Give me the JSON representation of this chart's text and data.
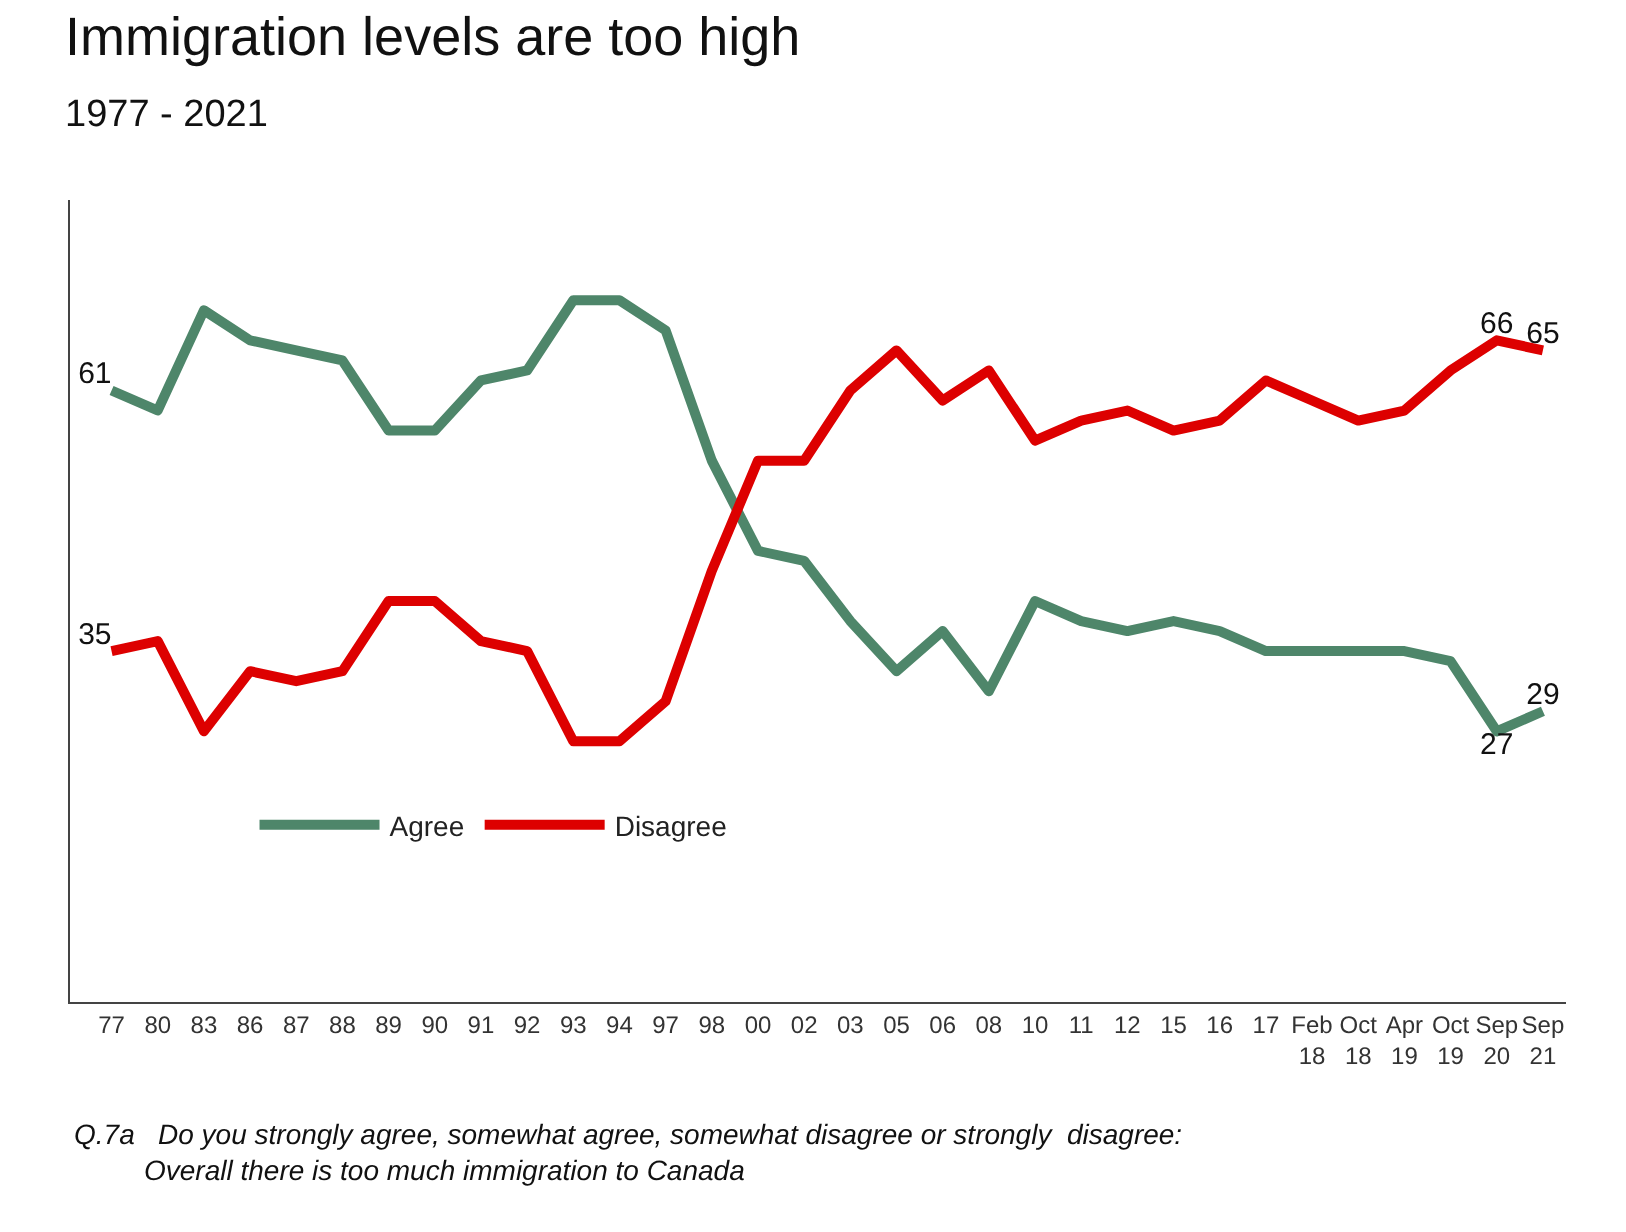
{
  "chart_data": {
    "type": "line",
    "title": "Immigration levels are too high",
    "subtitle": "1977 - 2021",
    "categories": [
      "77",
      "80",
      "83",
      "86",
      "87",
      "88",
      "89",
      "90",
      "91",
      "92",
      "93",
      "94",
      "97",
      "98",
      "00",
      "02",
      "03",
      "05",
      "06",
      "08",
      "10",
      "11",
      "12",
      "15",
      "16",
      "17",
      "Feb 18",
      "Oct 18",
      "Apr 19",
      "Oct 19",
      "Sep 20",
      "Sep 21"
    ],
    "series": [
      {
        "name": "Agree",
        "color": "#4e866a",
        "values": [
          61,
          59,
          69,
          66,
          65,
          64,
          57,
          57,
          62,
          63,
          70,
          70,
          67,
          54,
          45,
          44,
          38,
          33,
          37,
          31,
          40,
          38,
          37,
          38,
          37,
          35,
          35,
          35,
          35,
          34,
          27,
          29
        ],
        "value_labels": [
          "61",
          null,
          null,
          null,
          null,
          null,
          null,
          null,
          null,
          null,
          null,
          null,
          null,
          null,
          null,
          null,
          null,
          null,
          null,
          null,
          null,
          null,
          null,
          null,
          null,
          null,
          null,
          null,
          null,
          null,
          "27",
          "29"
        ]
      },
      {
        "name": "Disagree",
        "color": "#dd0000",
        "values": [
          35,
          36,
          27,
          33,
          32,
          33,
          40,
          40,
          36,
          35,
          26,
          26,
          30,
          43,
          54,
          54,
          61,
          65,
          60,
          63,
          56,
          58,
          59,
          57,
          58,
          62,
          60,
          58,
          59,
          63,
          66,
          65
        ],
        "value_labels": [
          "35",
          null,
          null,
          null,
          null,
          null,
          null,
          null,
          null,
          null,
          null,
          null,
          null,
          null,
          null,
          null,
          null,
          null,
          null,
          null,
          null,
          null,
          null,
          null,
          null,
          null,
          null,
          null,
          null,
          null,
          "66",
          "65"
        ]
      }
    ],
    "ylim": [
      0,
      80
    ],
    "legend": "left",
    "marker": "none",
    "line_style": "solid",
    "annotations": [
      "Q.7a   Do you strongly agree, somewhat agree, somewhat disagree or strongly  disagree:\n         Overall there is too much immigration to Canada"
    ]
  }
}
